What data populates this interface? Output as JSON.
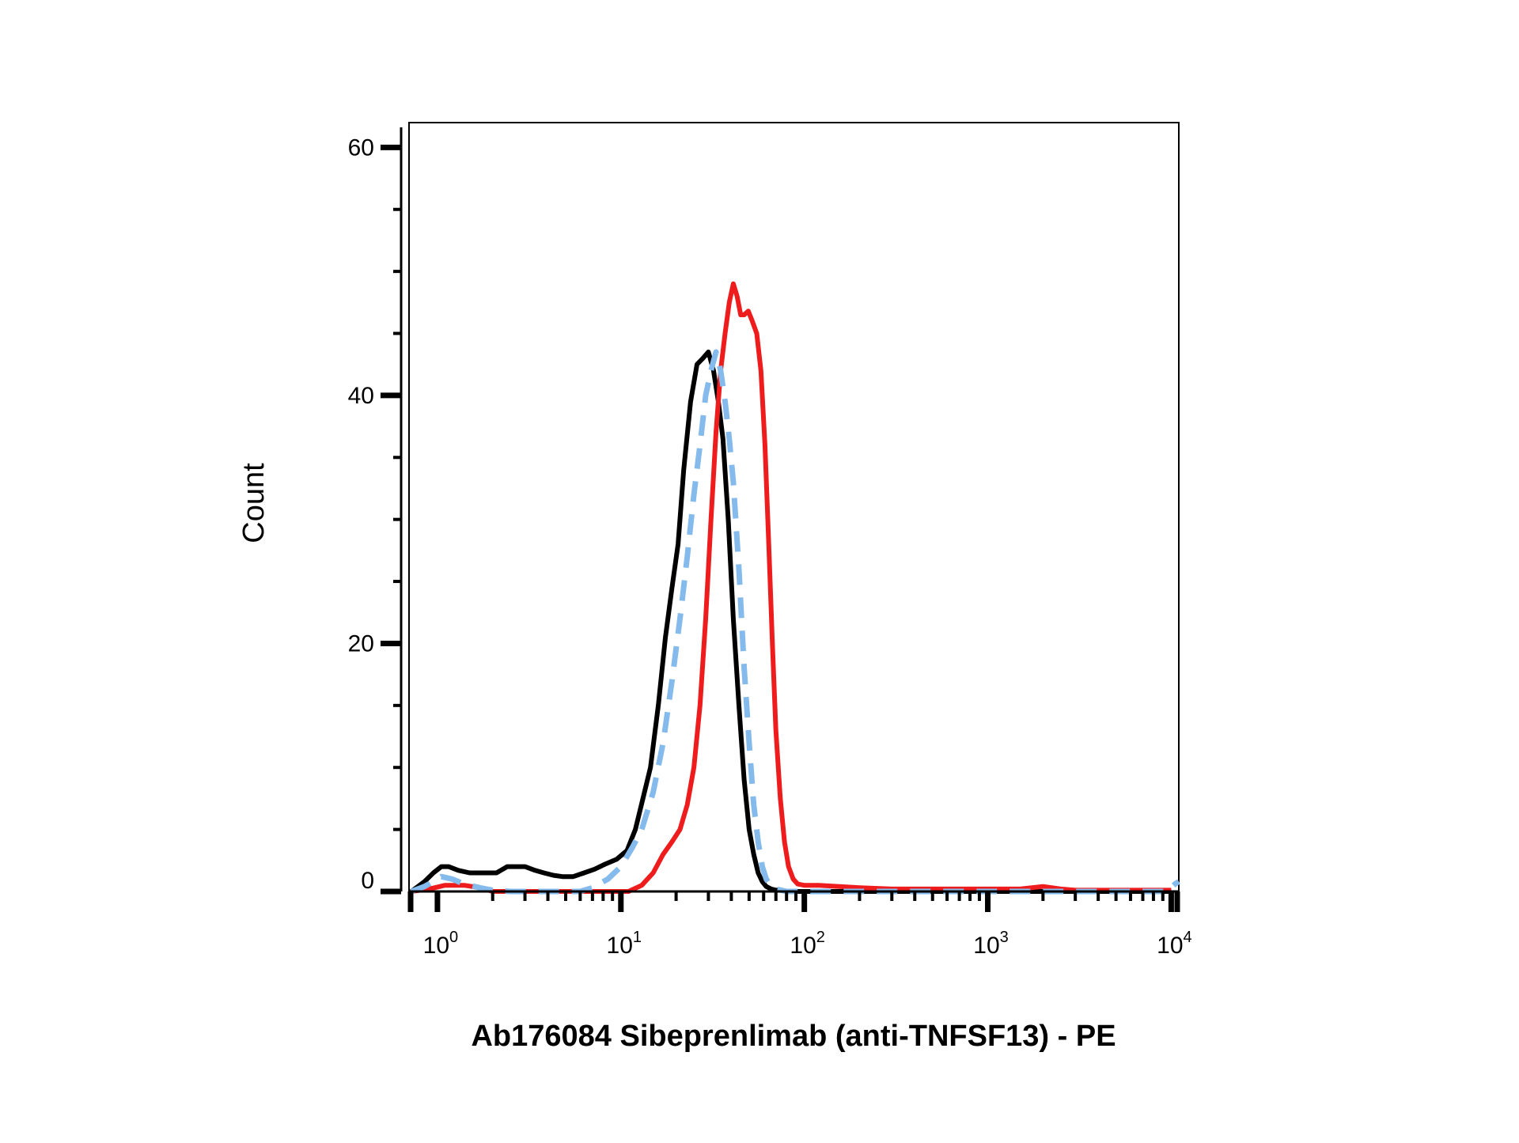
{
  "chart_data": {
    "type": "line",
    "title": "",
    "xlabel": "Ab176084 Sibeprenlimab (anti-TNFSF13) - PE",
    "ylabel": "Count",
    "x_scale": "log",
    "xlim": [
      0.7,
      11000
    ],
    "ylim": [
      0,
      62
    ],
    "y_ticks": [
      0,
      20,
      40,
      60
    ],
    "y_tick_labels": [
      "0",
      "20",
      "40",
      "60"
    ],
    "x_ticks": [
      1,
      10,
      100,
      1000,
      10000
    ],
    "x_tick_labels": [
      {
        "base": "10",
        "exp": "0"
      },
      {
        "base": "10",
        "exp": "1"
      },
      {
        "base": "10",
        "exp": "2"
      },
      {
        "base": "10",
        "exp": "3"
      },
      {
        "base": "10",
        "exp": "4"
      }
    ],
    "grid": false,
    "legend": "none",
    "series": [
      {
        "color": "#000000",
        "style": "solid",
        "x": [
          0.72,
          0.85,
          0.95,
          1.05,
          1.15,
          1.3,
          1.5,
          1.8,
          2.1,
          2.4,
          2.7,
          3.0,
          3.4,
          3.8,
          4.3,
          4.8,
          5.5,
          6.3,
          7.2,
          8.2,
          9.5,
          10.8,
          12.0,
          13.2,
          14.5,
          16.0,
          17.5,
          19.0,
          20.5,
          22.0,
          24.0,
          26.0,
          28.0,
          30.0,
          32.0,
          34.0,
          36.0,
          38.5,
          41.0,
          44.0,
          47.0,
          50.0,
          53.0,
          56.0,
          59.0,
          62.0,
          66.0,
          70.0,
          75.0,
          82.0,
          90.0,
          100.0,
          150.0,
          300.0,
          1000.0,
          3000.0,
          10000.0
        ],
        "y": [
          0.0,
          0.8,
          1.5,
          2.0,
          2.0,
          1.7,
          1.5,
          1.5,
          1.5,
          2.0,
          2.0,
          2.0,
          1.7,
          1.5,
          1.3,
          1.2,
          1.2,
          1.5,
          1.8,
          2.2,
          2.6,
          3.3,
          5.0,
          7.5,
          10.0,
          15.0,
          20.5,
          24.5,
          28.0,
          34.0,
          39.5,
          42.5,
          43.0,
          43.5,
          42.0,
          39.5,
          36.5,
          30.0,
          22.0,
          15.0,
          9.0,
          5.0,
          3.0,
          1.5,
          0.8,
          0.4,
          0.2,
          0.1,
          0.1,
          0.0,
          0.0,
          0.0,
          0.0,
          0.0,
          0.0,
          0.0,
          0.0
        ]
      },
      {
        "color": "#85bbec",
        "style": "dashed",
        "x": [
          0.72,
          0.85,
          0.95,
          1.05,
          1.2,
          1.4,
          1.7,
          2.0,
          2.5,
          3.0,
          4.0,
          5.0,
          6.0,
          7.0,
          8.5,
          10.0,
          11.5,
          13.0,
          15.0,
          17.0,
          19.0,
          21.0,
          23.0,
          25.0,
          27.0,
          29.0,
          31.0,
          33.0,
          35.0,
          37.0,
          39.0,
          41.0,
          44.0,
          47.0,
          50.0,
          53.0,
          56.0,
          59.0,
          62.0,
          66.0,
          70.0,
          80.0,
          100.0,
          200.0,
          1000.0,
          5000.0,
          9500.0,
          10500.0,
          11000.0
        ],
        "y": [
          0.0,
          0.4,
          0.8,
          1.2,
          1.0,
          0.6,
          0.3,
          0.1,
          0.0,
          0.0,
          0.0,
          0.0,
          0.0,
          0.3,
          1.0,
          2.0,
          3.5,
          5.0,
          8.0,
          12.0,
          17.0,
          22.0,
          27.0,
          32.0,
          36.0,
          40.0,
          42.0,
          43.5,
          42.0,
          39.5,
          36.5,
          33.0,
          26.0,
          18.0,
          12.0,
          7.0,
          4.0,
          2.0,
          1.0,
          0.4,
          0.2,
          0.0,
          0.0,
          0.0,
          0.0,
          0.0,
          0.0,
          0.6,
          0.8
        ]
      },
      {
        "color": "#ee1c1c",
        "style": "solid",
        "x": [
          0.72,
          0.9,
          1.1,
          1.4,
          1.7,
          2.0,
          3.0,
          5.0,
          8.0,
          11.0,
          13.0,
          15.0,
          17.0,
          19.0,
          21.0,
          23.0,
          25.0,
          27.0,
          29.0,
          31.0,
          33.0,
          35.0,
          37.0,
          39.0,
          41.0,
          43.0,
          45.0,
          47.0,
          49.5,
          52.0,
          55.0,
          58.0,
          61.0,
          64.0,
          67.0,
          70.0,
          74.0,
          78.0,
          82.0,
          87.0,
          92.0,
          100.0,
          120.0,
          200.0,
          300.0,
          500.0,
          1000.0,
          1500.0,
          2000.0,
          2500.0,
          3000.0,
          5000.0,
          10000.0
        ],
        "y": [
          0.0,
          0.2,
          0.5,
          0.5,
          0.3,
          0.0,
          0.0,
          0.0,
          0.0,
          0.0,
          0.5,
          1.5,
          3.0,
          4.0,
          5.0,
          7.0,
          10.0,
          15.0,
          22.0,
          30.0,
          37.0,
          42.0,
          45.0,
          47.5,
          49.0,
          48.0,
          46.5,
          46.5,
          46.8,
          46.0,
          45.0,
          42.0,
          36.0,
          28.0,
          20.0,
          13.0,
          7.5,
          4.0,
          2.0,
          1.0,
          0.6,
          0.5,
          0.5,
          0.3,
          0.2,
          0.2,
          0.2,
          0.2,
          0.4,
          0.2,
          0.1,
          0.1,
          0.1
        ]
      }
    ]
  }
}
